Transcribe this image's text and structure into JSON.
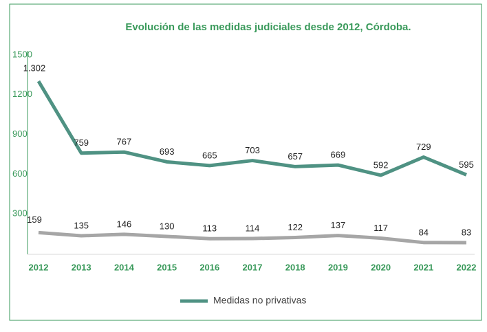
{
  "chart_data": {
    "type": "line",
    "title": "Evolución de las medidas judiciales desde 2012, Córdoba.",
    "categories": [
      "2012",
      "2013",
      "2014",
      "2015",
      "2016",
      "2017",
      "2018",
      "2019",
      "2020",
      "2021",
      "2022"
    ],
    "series": [
      {
        "name": "Medidas no privativas",
        "color": "#4f9283",
        "values": [
          1302,
          759,
          767,
          693,
          665,
          703,
          657,
          669,
          592,
          729,
          595
        ],
        "value_labels": [
          "1.302",
          "759",
          "767",
          "693",
          "665",
          "703",
          "657",
          "669",
          "592",
          "729",
          "595"
        ]
      },
      {
        "color": "#a6a6a6",
        "values": [
          159,
          135,
          146,
          130,
          113,
          114,
          122,
          137,
          117,
          84,
          83
        ]
      }
    ],
    "ylim": [
      0,
      1500
    ],
    "yticks": [
      300,
      600,
      900,
      1200,
      1500
    ],
    "legend": "bottom"
  }
}
